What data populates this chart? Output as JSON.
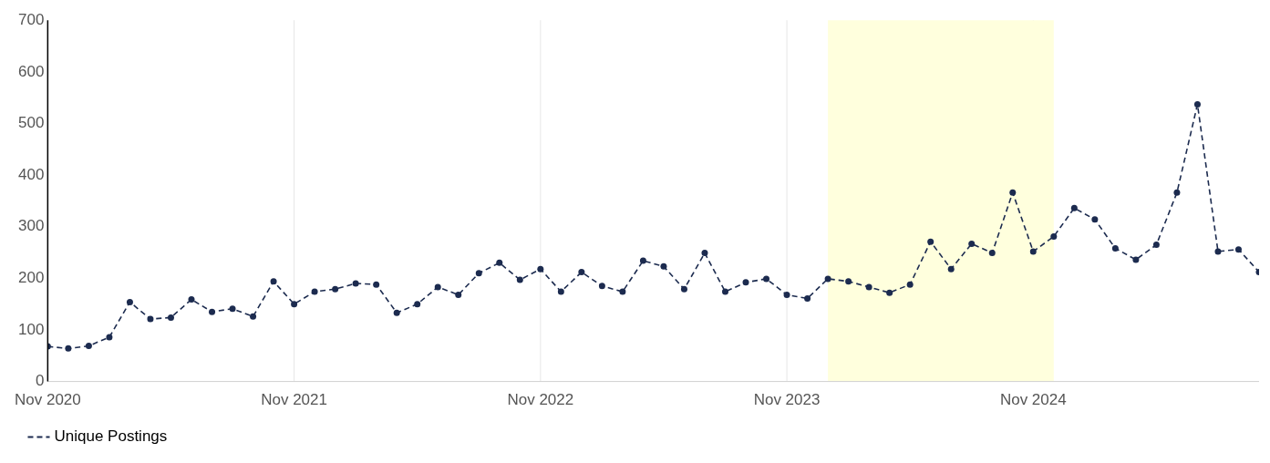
{
  "chart_data": {
    "type": "line",
    "x": [
      "2020-11",
      "2020-12",
      "2021-01",
      "2021-02",
      "2021-03",
      "2021-04",
      "2021-05",
      "2021-06",
      "2021-07",
      "2021-08",
      "2021-09",
      "2021-10",
      "2021-11",
      "2021-12",
      "2022-01",
      "2022-02",
      "2022-03",
      "2022-04",
      "2022-05",
      "2022-06",
      "2022-07",
      "2022-08",
      "2022-09",
      "2022-10",
      "2022-11",
      "2022-12",
      "2023-01",
      "2023-02",
      "2023-03",
      "2023-04",
      "2023-05",
      "2023-06",
      "2023-07",
      "2023-08",
      "2023-09",
      "2023-10",
      "2023-11",
      "2023-12",
      "2024-01",
      "2024-02",
      "2024-03",
      "2024-04",
      "2024-05",
      "2024-06",
      "2024-07",
      "2024-08",
      "2024-09",
      "2024-10",
      "2024-11",
      "2024-12",
      "2025-01",
      "2025-02",
      "2025-03",
      "2025-04",
      "2025-05",
      "2025-06",
      "2025-07",
      "2025-08",
      "2025-09",
      "2025-10"
    ],
    "series": [
      {
        "name": "Unique Postings",
        "color": "#1c2b4f",
        "values": [
          68,
          64,
          69,
          86,
          154,
          121,
          124,
          159,
          135,
          141,
          126,
          194,
          150,
          174,
          179,
          190,
          188,
          133,
          150,
          183,
          168,
          210,
          230,
          197,
          218,
          174,
          212,
          185,
          174,
          234,
          223,
          179,
          249,
          174,
          192,
          199,
          168,
          161,
          199,
          194,
          183,
          172,
          188,
          271,
          218,
          267,
          249,
          366,
          252,
          281,
          336,
          314,
          258,
          236,
          265,
          366,
          537,
          252,
          256,
          212
        ]
      }
    ],
    "xticks": [
      {
        "value": "2020-11",
        "label": "Nov 2020"
      },
      {
        "value": "2021-11",
        "label": "Nov 2021"
      },
      {
        "value": "2022-11",
        "label": "Nov 2022"
      },
      {
        "value": "2023-11",
        "label": "Nov 2023"
      },
      {
        "value": "2024-11",
        "label": "Nov 2024"
      }
    ],
    "xlim": [
      "2020-11",
      "2025-10"
    ],
    "ylim": [
      0,
      700
    ],
    "yticks": [
      0,
      100,
      200,
      300,
      400,
      500,
      600,
      700
    ],
    "bands": [
      {
        "axis": "x",
        "from": "2024-01",
        "to": "2024-12",
        "color": "#ffffdd"
      }
    ],
    "grid": "x",
    "legend": "bottom left",
    "marker": "circle",
    "line_style": "dashed"
  }
}
